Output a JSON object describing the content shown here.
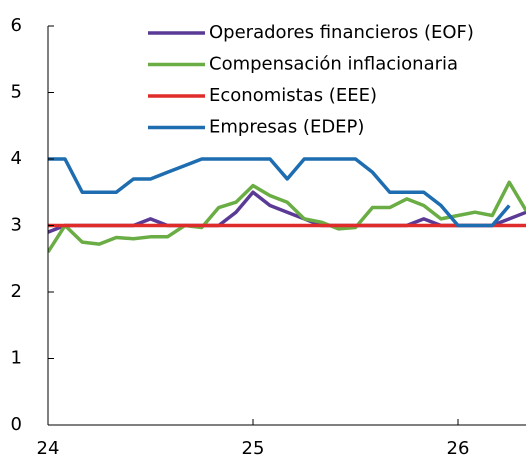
{
  "chart_data": {
    "type": "line",
    "x": [
      24,
      24.083,
      24.167,
      24.25,
      24.333,
      24.417,
      24.5,
      24.583,
      24.667,
      24.75,
      24.833,
      24.917,
      25,
      25.083,
      25.167,
      25.25,
      25.333,
      25.417,
      25.5,
      25.583,
      25.667,
      25.75,
      25.833,
      25.917,
      26,
      26.083,
      26.167,
      26.25,
      26.333
    ],
    "series": [
      {
        "name": "Operadores financieros (EOF)",
        "color": "#5b3a96",
        "values": [
          2.9,
          3,
          3,
          3,
          3,
          3,
          3.1,
          3,
          3,
          3,
          3,
          3.2,
          3.5,
          3.3,
          3.2,
          3.1,
          3,
          3,
          3,
          3,
          3,
          3,
          3.1,
          3,
          3,
          3,
          3,
          3.1,
          3.2
        ]
      },
      {
        "name": "Compensación inflacionaria",
        "color": "#6aad45",
        "values": [
          2.6,
          3.0,
          2.75,
          2.72,
          2.82,
          2.8,
          2.83,
          2.83,
          3.0,
          2.97,
          3.27,
          3.35,
          3.6,
          3.45,
          3.35,
          3.1,
          3.05,
          2.95,
          2.97,
          3.27,
          3.27,
          3.4,
          3.3,
          3.1,
          3.15,
          3.2,
          3.15,
          3.65,
          3.22
        ]
      },
      {
        "name": "Economistas (EEE)",
        "color": "#e02b2b",
        "values": [
          3,
          3,
          3,
          3,
          3,
          3,
          3,
          3,
          3,
          3,
          3,
          3,
          3,
          3,
          3,
          3,
          3,
          3,
          3,
          3,
          3,
          3,
          3,
          3,
          3,
          3,
          3,
          3,
          3
        ]
      },
      {
        "name": "Empresas (EDEP)",
        "color": "#1f6db1",
        "values": [
          4,
          4,
          3.5,
          3.5,
          3.5,
          3.7,
          3.7,
          3.8,
          3.9,
          4,
          4,
          4,
          4,
          4,
          3.7,
          4,
          4,
          4,
          4,
          3.8,
          3.5,
          3.5,
          3.5,
          3.3,
          3,
          3,
          3,
          3.3,
          null
        ]
      }
    ],
    "xlim": [
      24,
      26.333
    ],
    "xticks": [
      24,
      25,
      26
    ],
    "ylim": [
      0,
      6
    ],
    "yticks": [
      0,
      1,
      2,
      3,
      4,
      5,
      6
    ]
  }
}
